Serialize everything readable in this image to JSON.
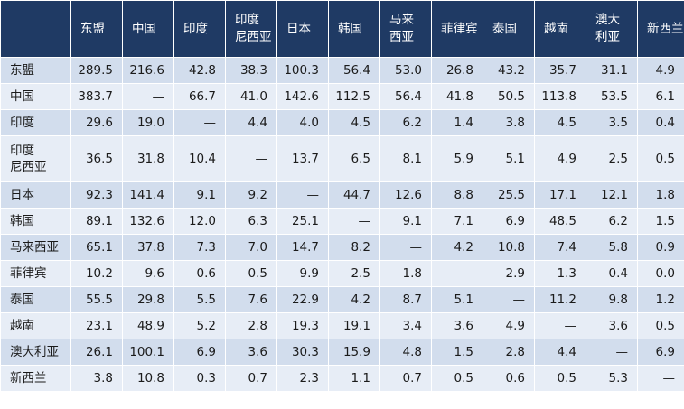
{
  "table": {
    "columns": [
      "东盟",
      "中国",
      "印度",
      "印度\n尼西亚",
      "日本",
      "韩国",
      "马来\n西亚",
      "菲律宾",
      "泰国",
      "越南",
      "澳大\n利亚",
      "新西兰"
    ],
    "rows": [
      {
        "label": "东盟",
        "values": [
          "289.5",
          "216.6",
          "42.8",
          "38.3",
          "100.3",
          "56.4",
          "53.0",
          "26.8",
          "43.2",
          "35.7",
          "31.1",
          "4.9"
        ]
      },
      {
        "label": "中国",
        "values": [
          "383.7",
          "—",
          "66.7",
          "41.0",
          "142.6",
          "112.5",
          "56.4",
          "41.8",
          "50.5",
          "113.8",
          "53.5",
          "6.1"
        ]
      },
      {
        "label": "印度",
        "values": [
          "29.6",
          "19.0",
          "—",
          "4.4",
          "4.0",
          "4.5",
          "6.2",
          "1.4",
          "3.8",
          "4.5",
          "3.5",
          "0.4"
        ]
      },
      {
        "label": "印度\n尼西亚",
        "values": [
          "36.5",
          "31.8",
          "10.4",
          "—",
          "13.7",
          "6.5",
          "8.1",
          "5.9",
          "5.1",
          "4.9",
          "2.5",
          "0.5"
        ]
      },
      {
        "label": "日本",
        "values": [
          "92.3",
          "141.4",
          "9.1",
          "9.2",
          "—",
          "44.7",
          "12.6",
          "8.8",
          "25.5",
          "17.1",
          "12.1",
          "1.8"
        ]
      },
      {
        "label": "韩国",
        "values": [
          "89.1",
          "132.6",
          "12.0",
          "6.3",
          "25.1",
          "—",
          "9.1",
          "7.1",
          "6.9",
          "48.5",
          "6.2",
          "1.5"
        ]
      },
      {
        "label": "马来西亚",
        "values": [
          "65.1",
          "37.8",
          "7.3",
          "7.0",
          "14.7",
          "8.2",
          "—",
          "4.2",
          "10.8",
          "7.4",
          "5.8",
          "0.9"
        ]
      },
      {
        "label": "菲律宾",
        "values": [
          "10.2",
          "9.6",
          "0.6",
          "0.5",
          "9.9",
          "2.5",
          "1.8",
          "—",
          "2.9",
          "1.3",
          "0.4",
          "0.0"
        ]
      },
      {
        "label": "泰国",
        "values": [
          "55.5",
          "29.8",
          "5.5",
          "7.6",
          "22.9",
          "4.2",
          "8.7",
          "5.1",
          "—",
          "11.2",
          "9.8",
          "1.2"
        ]
      },
      {
        "label": "越南",
        "values": [
          "23.1",
          "48.9",
          "5.2",
          "2.8",
          "19.3",
          "19.1",
          "3.4",
          "3.6",
          "4.9",
          "—",
          "3.6",
          "0.5"
        ]
      },
      {
        "label": "澳大利亚",
        "values": [
          "26.1",
          "100.1",
          "6.9",
          "3.6",
          "30.3",
          "15.9",
          "4.8",
          "1.5",
          "2.8",
          "4.4",
          "—",
          "6.9"
        ]
      },
      {
        "label": "新西兰",
        "values": [
          "3.8",
          "10.8",
          "0.3",
          "0.7",
          "2.3",
          "1.1",
          "0.7",
          "0.5",
          "0.6",
          "0.5",
          "5.3",
          "—"
        ]
      }
    ]
  },
  "colors": {
    "header_bg": "#1f3a64",
    "header_text": "#ffffff",
    "row_odd": "#d2dded",
    "row_even": "#e7edf6",
    "text": "#1b1b1b"
  }
}
